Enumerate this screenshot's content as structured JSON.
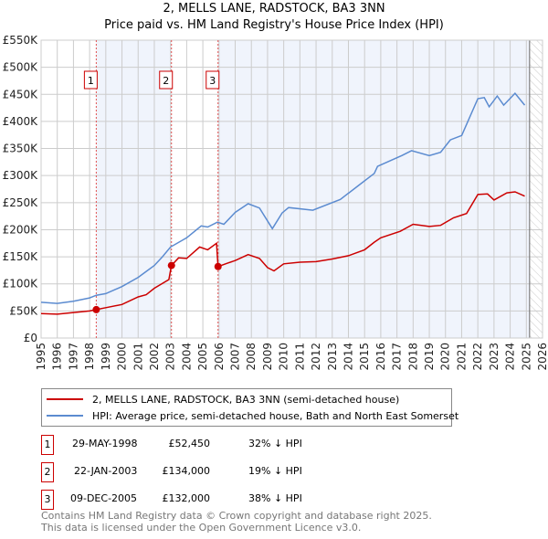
{
  "chart_data": {
    "type": "line",
    "title": "2, MELLS LANE, RADSTOCK, BA3 3NN",
    "subtitle": "Price paid vs. HM Land Registry's House Price Index (HPI)",
    "xlim": [
      1995,
      2026
    ],
    "ylim": [
      0,
      550000
    ],
    "x_ticks": [
      "1995",
      "1996",
      "1997",
      "1998",
      "1999",
      "2000",
      "2001",
      "2002",
      "2003",
      "2004",
      "2005",
      "2006",
      "2007",
      "2008",
      "2009",
      "2010",
      "2011",
      "2012",
      "2013",
      "2014",
      "2015",
      "2016",
      "2017",
      "2018",
      "2019",
      "2020",
      "2021",
      "2022",
      "2023",
      "2024",
      "2025",
      "2026"
    ],
    "y_ticks": [
      {
        "value": 0,
        "label": "£0"
      },
      {
        "value": 50000,
        "label": "£50K"
      },
      {
        "value": 100000,
        "label": "£100K"
      },
      {
        "value": 150000,
        "label": "£150K"
      },
      {
        "value": 200000,
        "label": "£200K"
      },
      {
        "value": 250000,
        "label": "£250K"
      },
      {
        "value": 300000,
        "label": "£300K"
      },
      {
        "value": 350000,
        "label": "£350K"
      },
      {
        "value": 400000,
        "label": "£400K"
      },
      {
        "value": 450000,
        "label": "£450K"
      },
      {
        "value": 500000,
        "label": "£500K"
      },
      {
        "value": 550000,
        "label": "£550K"
      }
    ],
    "grid": true,
    "series": [
      {
        "name": "2, MELLS LANE, RADSTOCK, BA3 3NN (semi-detached house)",
        "color": "#cc0000",
        "x": [
          1995,
          1996,
          1997,
          1998,
          1998.41,
          1999,
          2000,
          2001,
          2001.5,
          2002,
          2002.9,
          2003.06,
          2003.5,
          2004,
          2004.8,
          2005.3,
          2005.85,
          2005.94,
          2006.5,
          2007,
          2007.8,
          2008.5,
          2009,
          2009.4,
          2010,
          2011,
          2012,
          2013,
          2014,
          2015,
          2015.6,
          2016,
          2017.2,
          2018,
          2019,
          2019.7,
          2020.5,
          2021.3,
          2022,
          2022.6,
          2023,
          2023.8,
          2024.3,
          2024.9
        ],
        "y": [
          45000,
          44000,
          47000,
          50000,
          52450,
          56000,
          62000,
          76000,
          80000,
          92000,
          108000,
          134000,
          148000,
          147000,
          168000,
          163000,
          175000,
          132000,
          138000,
          143000,
          154000,
          147000,
          130000,
          124000,
          137000,
          140000,
          141000,
          146000,
          152000,
          163000,
          177000,
          185000,
          197000,
          210000,
          206000,
          208000,
          222000,
          230000,
          265000,
          266000,
          255000,
          268000,
          270000,
          262000
        ]
      },
      {
        "name": "HPI: Average price, semi-detached house, Bath and North East Somerset",
        "color": "#5b8bd0",
        "x": [
          1995,
          1996,
          1997,
          1998,
          1998.41,
          1999,
          2000,
          2001,
          2001.5,
          2002,
          2002.5,
          2003,
          2004,
          2004.9,
          2005.3,
          2005.9,
          2006.3,
          2007,
          2007.8,
          2008.5,
          2009.3,
          2009.9,
          2010.3,
          2011.8,
          2013.5,
          2014.6,
          2015.6,
          2015.8,
          2017.3,
          2017.9,
          2019,
          2019.7,
          2020.3,
          2021,
          2022,
          2022.4,
          2022.7,
          2023.2,
          2023.6,
          2024.3,
          2024.9
        ],
        "y": [
          66000,
          64000,
          68000,
          74000,
          79000,
          82000,
          95000,
          112000,
          123000,
          134000,
          150000,
          168000,
          185000,
          207000,
          205000,
          214000,
          210000,
          232000,
          248000,
          240000,
          202000,
          231000,
          241000,
          236000,
          256000,
          281000,
          304000,
          317000,
          337000,
          346000,
          337000,
          343000,
          366000,
          374000,
          442000,
          444000,
          427000,
          447000,
          430000,
          452000,
          430000
        ]
      }
    ],
    "sales": [
      {
        "label": "1",
        "x": 1998.41,
        "y": 52450
      },
      {
        "label": "2",
        "x": 2003.06,
        "y": 134000
      },
      {
        "label": "3",
        "x": 2005.94,
        "y": 132000
      }
    ],
    "hatched_from": 2025.2
  },
  "legend": {
    "items": [
      "2, MELLS LANE, RADSTOCK, BA3 3NN (semi-detached house)",
      "HPI: Average price, semi-detached house, Bath and North East Somerset"
    ]
  },
  "transactions": [
    {
      "num": "1",
      "date": "29-MAY-1998",
      "price": "£52,450",
      "delta": "32% ↓ HPI"
    },
    {
      "num": "2",
      "date": "22-JAN-2003",
      "price": "£134,000",
      "delta": "19% ↓ HPI"
    },
    {
      "num": "3",
      "date": "09-DEC-2005",
      "price": "£132,000",
      "delta": "38% ↓ HPI"
    }
  ],
  "footer": {
    "line1": "Contains HM Land Registry data © Crown copyright and database right 2025.",
    "line2": "This data is licensed under the Open Government Licence v3.0."
  }
}
